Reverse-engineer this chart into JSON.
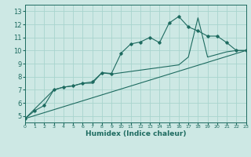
{
  "xlabel": "Humidex (Indice chaleur)",
  "xlim": [
    0,
    23
  ],
  "ylim": [
    4.5,
    13.5
  ],
  "xticks": [
    0,
    1,
    2,
    3,
    4,
    5,
    6,
    7,
    8,
    9,
    10,
    11,
    12,
    13,
    14,
    15,
    16,
    17,
    18,
    19,
    20,
    21,
    22,
    23
  ],
  "yticks": [
    5,
    6,
    7,
    8,
    9,
    10,
    11,
    12,
    13
  ],
  "background_color": "#cde8e4",
  "grid_color": "#a8d4ce",
  "line_color": "#1e6b60",
  "line1_x": [
    0,
    1,
    2,
    3,
    4,
    5,
    6,
    7,
    8,
    9,
    10,
    11,
    12,
    13,
    14,
    15,
    16,
    17,
    18,
    19,
    20,
    21,
    22,
    23
  ],
  "line1_y": [
    4.8,
    5.4,
    5.8,
    7.0,
    7.2,
    7.3,
    7.5,
    7.6,
    8.3,
    8.25,
    9.8,
    10.5,
    10.65,
    11.0,
    10.6,
    12.1,
    12.6,
    11.8,
    11.5,
    11.1,
    11.1,
    10.6,
    10.0,
    10.0
  ],
  "line2_x": [
    0,
    3,
    4,
    5,
    6,
    7,
    8,
    9,
    10,
    11,
    12,
    13,
    14,
    15,
    16,
    17,
    18,
    19,
    20,
    21,
    22,
    23
  ],
  "line2_y": [
    4.8,
    7.0,
    7.2,
    7.3,
    7.5,
    7.5,
    8.3,
    8.2,
    8.3,
    8.4,
    8.5,
    8.6,
    8.7,
    8.8,
    8.9,
    9.5,
    12.5,
    9.5,
    9.7,
    9.9,
    10.0,
    10.0
  ],
  "line3_x": [
    0,
    23
  ],
  "line3_y": [
    4.8,
    10.0
  ]
}
